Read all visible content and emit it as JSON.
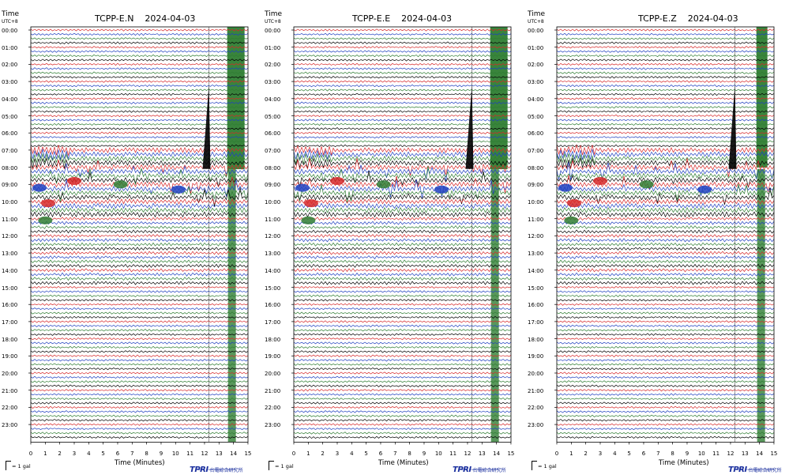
{
  "time_label": "Time",
  "tz_label": "UTC+8",
  "xaxis_label": "Time (Minutes)",
  "scale_label": "= 1 gal",
  "logo": {
    "mark": "TPRI",
    "name": "台電綜合研究所",
    "subtitle": "Taiwan Power Research Institute"
  },
  "colors": {
    "row_cycle": [
      "#d62728",
      "#1f3fbf",
      "#2e7d32",
      "#000000"
    ],
    "accent_green": "#2e7d32"
  },
  "chart_data": [
    {
      "type": "line",
      "title": "TCPP-E.N    2024-04-03",
      "xlabel": "Time (Minutes)",
      "ylabel": "Time UTC+8",
      "xlim": [
        0,
        15
      ],
      "x_ticks": [
        "0",
        "1",
        "2",
        "3",
        "4",
        "5",
        "6",
        "7",
        "8",
        "9",
        "10",
        "11",
        "12",
        "13",
        "14",
        "15"
      ],
      "y_ticks": [
        "00:00",
        "01:00",
        "02:00",
        "03:00",
        "04:00",
        "05:00",
        "06:00",
        "07:00",
        "08:00",
        "09:00",
        "10:00",
        "11:00",
        "12:00",
        "13:00",
        "14:00",
        "15:00",
        "16:00",
        "17:00",
        "18:00",
        "19:00",
        "20:00",
        "21:00",
        "22:00",
        "23:00"
      ],
      "traces_per_hour": 4,
      "grid": false
    },
    {
      "type": "line",
      "title": "TCPP-E.E    2024-04-03",
      "xlabel": "Time (Minutes)",
      "ylabel": "Time UTC+8",
      "xlim": [
        0,
        15
      ],
      "x_ticks": [
        "0",
        "1",
        "2",
        "3",
        "4",
        "5",
        "6",
        "7",
        "8",
        "9",
        "10",
        "11",
        "12",
        "13",
        "14",
        "15"
      ],
      "y_ticks": [
        "00:00",
        "01:00",
        "02:00",
        "03:00",
        "04:00",
        "05:00",
        "06:00",
        "07:00",
        "08:00",
        "09:00",
        "10:00",
        "11:00",
        "12:00",
        "13:00",
        "14:00",
        "15:00",
        "16:00",
        "17:00",
        "18:00",
        "19:00",
        "20:00",
        "21:00",
        "22:00",
        "23:00"
      ],
      "traces_per_hour": 4,
      "grid": false
    },
    {
      "type": "line",
      "title": "TCPP-E.Z    2024-04-03",
      "xlabel": "Time (Minutes)",
      "ylabel": "Time UTC+8",
      "xlim": [
        0,
        15
      ],
      "x_ticks": [
        "0",
        "1",
        "2",
        "3",
        "4",
        "5",
        "6",
        "7",
        "8",
        "9",
        "10",
        "11",
        "12",
        "13",
        "14",
        "15"
      ],
      "y_ticks": [
        "00:00",
        "01:00",
        "02:00",
        "03:00",
        "04:00",
        "05:00",
        "06:00",
        "07:00",
        "08:00",
        "09:00",
        "10:00",
        "11:00",
        "12:00",
        "13:00",
        "14:00",
        "15:00",
        "16:00",
        "17:00",
        "18:00",
        "19:00",
        "20:00",
        "21:00",
        "22:00",
        "23:00"
      ],
      "traces_per_hour": 4,
      "grid": false
    }
  ]
}
